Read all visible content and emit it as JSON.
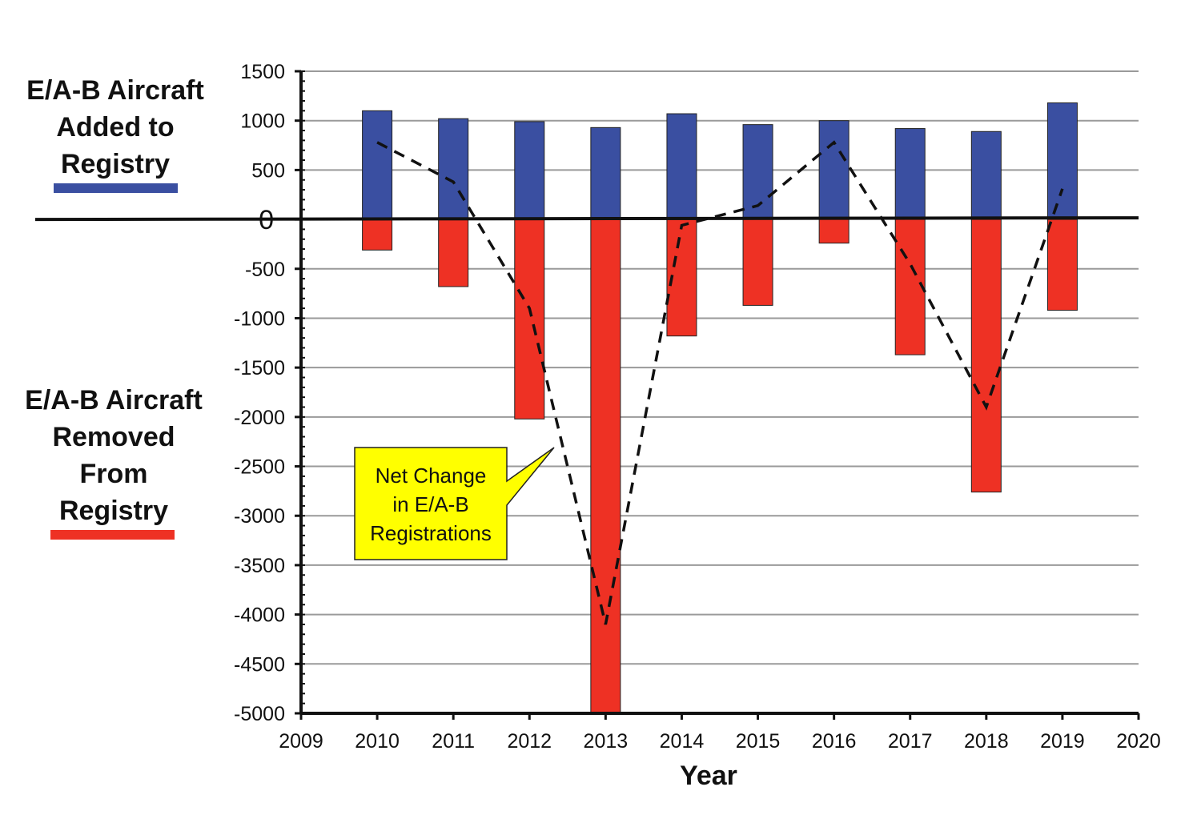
{
  "legend": {
    "added_title_lines": [
      "E/A-B Aircraft",
      "Added to",
      "Registry"
    ],
    "added_color": "#3a4fa1",
    "removed_title_lines": [
      "E/A-B Aircraft",
      "Removed",
      "From",
      "Registry"
    ],
    "removed_color": "#ee3124"
  },
  "chart_data": {
    "type": "bar",
    "xlabel": "Year",
    "ylabel": "",
    "x_ticks": [
      "2009",
      "2010",
      "2011",
      "2012",
      "2013",
      "2014",
      "2015",
      "2016",
      "2017",
      "2018",
      "2019",
      "2020"
    ],
    "xlim": [
      2009,
      2020
    ],
    "ylim": [
      -5000,
      1500
    ],
    "y_ticks": [
      "1500",
      "1000",
      "500",
      "0",
      "-500",
      "-1000",
      "-1500",
      "-2000",
      "-2500",
      "-3000",
      "-3500",
      "-4000",
      "-4500",
      "-5000"
    ],
    "grid": true,
    "categories": [
      "2010",
      "2011",
      "2012",
      "2013",
      "2014",
      "2015",
      "2016",
      "2017",
      "2018",
      "2019"
    ],
    "series": [
      {
        "name": "E/A-B Aircraft Added to Registry",
        "color": "#3a4fa1",
        "values": [
          1100,
          1020,
          990,
          930,
          1070,
          960,
          1000,
          920,
          890,
          1180
        ]
      },
      {
        "name": "E/A-B Aircraft Removed From Registry",
        "color": "#ee3124",
        "values": [
          -310,
          -680,
          -2020,
          -5000,
          -1180,
          -870,
          -240,
          -1370,
          -2760,
          -920
        ]
      },
      {
        "name": "Net Change in E/A-B Registrations",
        "style": "dashed",
        "color": "#111111",
        "values": [
          780,
          380,
          -900,
          -4100,
          -60,
          140,
          780,
          -450,
          -1900,
          310
        ]
      }
    ],
    "annotation": {
      "lines": [
        "Net Change",
        "in E/A-B",
        "Registrations"
      ],
      "background": "#ffff00"
    }
  }
}
